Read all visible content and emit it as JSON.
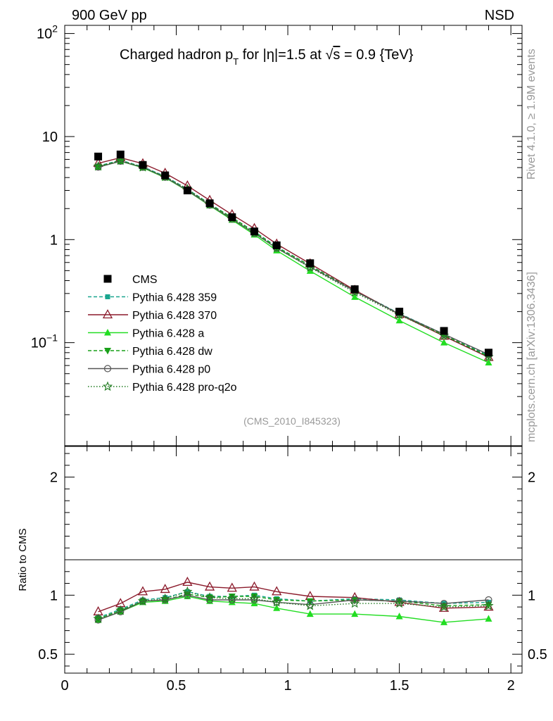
{
  "header": {
    "left": "900 GeV pp",
    "right": "NSD"
  },
  "side": {
    "top": "Rivet 4.1.0, ≥ 1.9M events",
    "bottom": "mcplots.cern.ch [arXiv:1306.3436]"
  },
  "chart_data": {
    "type": "line",
    "title": "Charged hadron p_T for |η|=1.5 at √s = 0.9 {TeV}",
    "title_parts": {
      "a": "Charged hadron p",
      "sub": "T",
      "b": " for |η|=1.5 at ",
      "root": "√",
      "s": "s",
      "c": " = 0.9 {TeV}"
    },
    "watermark": "(CMS_2010_I845323)",
    "main": {
      "yscale": "log",
      "ylim": [
        0.01,
        120
      ],
      "xlim": [
        0,
        2.05
      ],
      "yticks": [
        {
          "v": 100,
          "label": "10",
          "sup": "2"
        },
        {
          "v": 10,
          "label": "10",
          "sup": ""
        },
        {
          "v": 1,
          "label": "1",
          "sup": ""
        },
        {
          "v": 0.1,
          "label": "10",
          "sup": "−1"
        }
      ]
    },
    "ratio": {
      "ylabel": "Ratio to CMS",
      "ylim": [
        0.34,
        2.26
      ],
      "yticks": [
        {
          "v": 0.5,
          "label": "0.5"
        },
        {
          "v": 1,
          "label": "1"
        },
        {
          "v": 2,
          "label": "2"
        }
      ]
    },
    "xticks": [
      {
        "v": 0,
        "label": "0"
      },
      {
        "v": 0.5,
        "label": "0.5"
      },
      {
        "v": 1,
        "label": "1"
      },
      {
        "v": 1.5,
        "label": "1.5"
      },
      {
        "v": 2,
        "label": "2"
      }
    ],
    "x": [
      0.15,
      0.25,
      0.35,
      0.45,
      0.55,
      0.65,
      0.75,
      0.85,
      0.95,
      1.1,
      1.3,
      1.5,
      1.7,
      1.9
    ],
    "data": {
      "name": "CMS",
      "values": [
        6.4,
        6.7,
        5.3,
        4.2,
        3.0,
        2.25,
        1.65,
        1.2,
        0.88,
        0.59,
        0.33,
        0.2,
        0.13,
        0.08
      ]
    },
    "series": [
      {
        "name": "Pythia 6.428 359",
        "color": "#1aa68f",
        "dash": "5,3",
        "marker": "square-filled",
        "ratios": [
          0.81,
          0.88,
          0.96,
          0.98,
          1.03,
          0.99,
          0.99,
          1.0,
          0.97,
          0.95,
          0.97,
          0.96,
          0.93,
          0.94
        ]
      },
      {
        "name": "Pythia 6.428 370",
        "color": "#8b1a2b",
        "dash": "",
        "marker": "triangle-open",
        "ratios": [
          0.86,
          0.93,
          1.03,
          1.05,
          1.11,
          1.07,
          1.06,
          1.07,
          1.03,
          0.99,
          0.98,
          0.94,
          0.89,
          0.9
        ]
      },
      {
        "name": "Pythia 6.428 a",
        "color": "#22dd22",
        "dash": "",
        "marker": "triangle-filled",
        "ratios": [
          0.79,
          0.86,
          0.94,
          0.95,
          0.99,
          0.95,
          0.94,
          0.93,
          0.89,
          0.84,
          0.84,
          0.82,
          0.77,
          0.8
        ]
      },
      {
        "name": "Pythia 6.428 dw",
        "color": "#19a019",
        "dash": "5,3",
        "marker": "triangle-down-filled",
        "ratios": [
          0.8,
          0.87,
          0.95,
          0.96,
          1.01,
          0.98,
          0.99,
          0.99,
          0.96,
          0.95,
          0.96,
          0.95,
          0.91,
          0.92
        ]
      },
      {
        "name": "Pythia 6.428 p0",
        "color": "#555555",
        "dash": "",
        "marker": "circle-open",
        "ratios": [
          0.79,
          0.86,
          0.95,
          0.96,
          1.0,
          0.96,
          0.96,
          0.96,
          0.94,
          0.92,
          0.96,
          0.95,
          0.93,
          0.96
        ]
      },
      {
        "name": "Pythia 6.428 pro-q2o",
        "color": "#1f7a1f",
        "dash": "1.5,2.5",
        "marker": "star-open",
        "ratios": [
          0.8,
          0.87,
          0.95,
          0.97,
          1.03,
          0.98,
          0.97,
          0.97,
          0.94,
          0.91,
          0.93,
          0.93,
          0.9,
          0.91
        ]
      }
    ]
  }
}
